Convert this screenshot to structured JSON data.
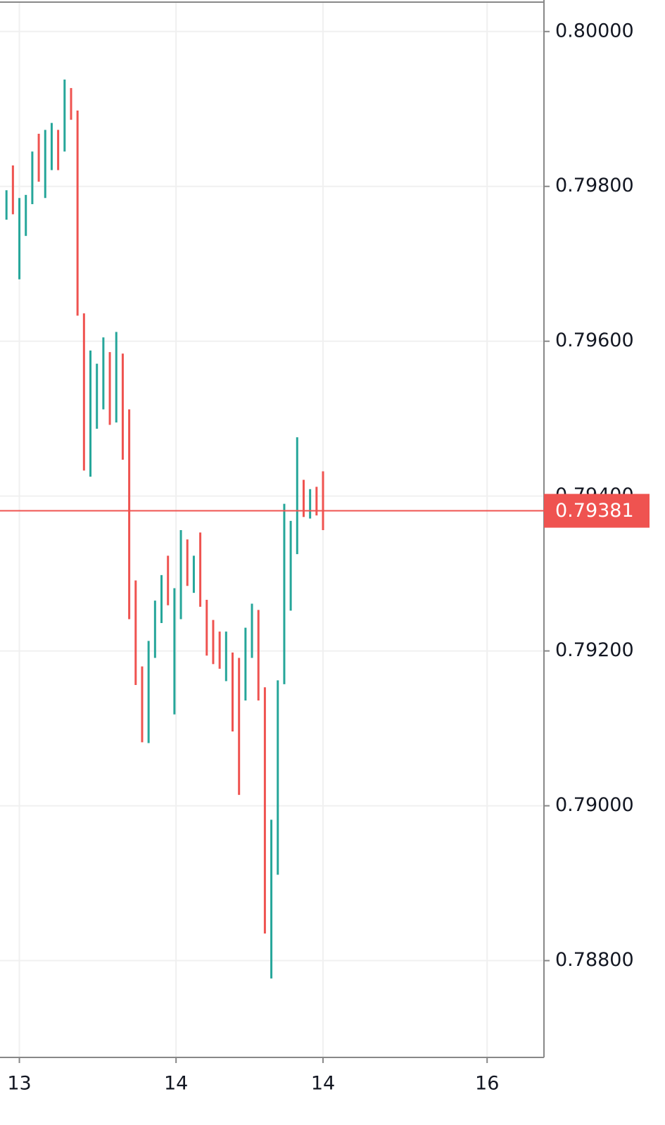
{
  "chart_data": {
    "type": "ohlc",
    "x": [
      0,
      1,
      2,
      3,
      4,
      5,
      6,
      7,
      8,
      9,
      10,
      11,
      12,
      13,
      14,
      15,
      16,
      17,
      18,
      19,
      20,
      21,
      22,
      23,
      24,
      25,
      26,
      27,
      28,
      29,
      30,
      31,
      32,
      33,
      34,
      35,
      36,
      37,
      38,
      39,
      40,
      41,
      42,
      43,
      44,
      45,
      46,
      47,
      48,
      49
    ],
    "high": [
      0.79795,
      0.79827,
      0.79785,
      0.79789,
      0.79845,
      0.79868,
      0.79873,
      0.79882,
      0.79873,
      0.79938,
      0.79927,
      0.79898,
      0.79636,
      0.79588,
      0.79571,
      0.79605,
      0.79586,
      0.79612,
      0.79584,
      0.79512,
      0.79291,
      0.7918,
      0.79213,
      0.79265,
      0.79298,
      0.79323,
      0.79281,
      0.79356,
      0.79344,
      0.79323,
      0.79353,
      0.79266,
      0.7924,
      0.79225,
      0.79225,
      0.79198,
      0.79191,
      0.7923,
      0.79261,
      0.79253,
      0.79153,
      0.78982,
      0.79162,
      0.7939,
      0.79368,
      0.79476,
      0.79421,
      0.79409,
      0.79412,
      0.79432
    ],
    "low": [
      0.79757,
      0.79764,
      0.7968,
      0.79736,
      0.79777,
      0.79806,
      0.79785,
      0.79821,
      0.79821,
      0.79845,
      0.79886,
      0.79633,
      0.79433,
      0.79425,
      0.79487,
      0.79512,
      0.79492,
      0.79495,
      0.79447,
      0.79241,
      0.79156,
      0.79082,
      0.79081,
      0.79191,
      0.79236,
      0.79259,
      0.79118,
      0.79241,
      0.79284,
      0.79275,
      0.79257,
      0.79194,
      0.79183,
      0.79177,
      0.79161,
      0.79096,
      0.79014,
      0.79136,
      0.79191,
      0.79136,
      0.78835,
      0.78777,
      0.78911,
      0.79157,
      0.79252,
      0.79325,
      0.79373,
      0.79371,
      0.79375,
      0.79356
    ],
    "rising": [
      true,
      false,
      true,
      true,
      true,
      false,
      true,
      true,
      false,
      true,
      false,
      false,
      false,
      true,
      true,
      true,
      false,
      true,
      false,
      false,
      false,
      false,
      true,
      true,
      true,
      false,
      true,
      true,
      false,
      true,
      false,
      false,
      false,
      false,
      true,
      false,
      false,
      true,
      true,
      false,
      false,
      true,
      true,
      true,
      true,
      true,
      false,
      true,
      false,
      false
    ],
    "up_color": "#26a69a",
    "down_color": "#ef5350",
    "last_price": 0.79381,
    "ylim": [
      0.78675,
      0.80038
    ],
    "yticks": [
      {
        "value": 0.788,
        "label": "0.78800"
      },
      {
        "value": 0.79,
        "label": "0.79000"
      },
      {
        "value": 0.792,
        "label": "0.79200"
      },
      {
        "value": 0.794,
        "label": "0.79400"
      },
      {
        "value": 0.796,
        "label": "0.79600"
      },
      {
        "value": 0.798,
        "label": "0.79800"
      },
      {
        "value": 0.8,
        "label": "0.80000"
      }
    ],
    "xlim": [
      -1,
      83.2
    ],
    "xticks": [
      {
        "value": 2,
        "label": "13"
      },
      {
        "value": 26.25,
        "label": "14"
      },
      {
        "value": 49,
        "label": "14"
      },
      {
        "value": 74.4,
        "label": "16"
      }
    ],
    "grid": true
  }
}
